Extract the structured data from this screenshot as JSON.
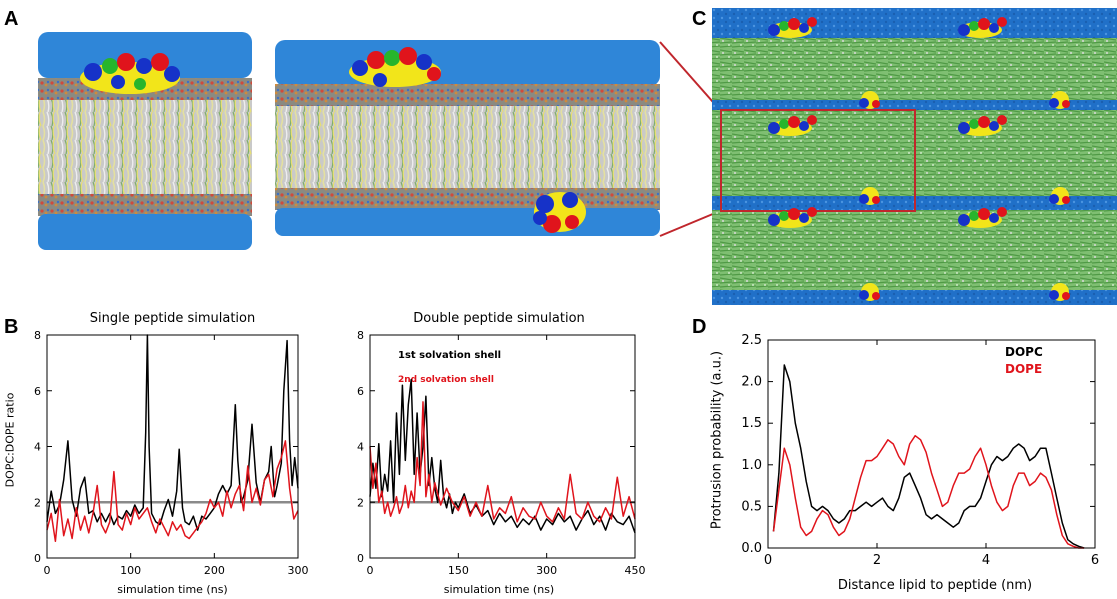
{
  "panel_letters": {
    "a": "A",
    "b": "B",
    "c": "C",
    "d": "D"
  },
  "colors": {
    "water": "#2a7fd4",
    "lipid_green": "#3f9a3c",
    "lipid_white": "#d8d8d8",
    "lipid_yellow": "#e2d84a",
    "peptide_red": "#e0141c",
    "peptide_blue": "#1632c8",
    "peptide_yellow": "#f2e51a",
    "peptide_green": "#27b52c",
    "box_outline": "#c0262c"
  },
  "panel_b_left": {
    "title": "Single peptide simulation",
    "ylabel": "DOPC:DOPE ratio",
    "xlabel": "simulation time (ns)"
  },
  "panel_b_right": {
    "title": "Double peptide simulation",
    "xlabel": "simulation time (ns)",
    "legend_1": "1st solvation shell",
    "legend_2": "2nd solvation shell"
  },
  "panel_d": {
    "ylabel": "Protrusion probability (a.u.)",
    "xlabel": "Distance lipid to peptide (nm)",
    "legend_1": "DOPC",
    "legend_2": "DOPE"
  },
  "chart_data": [
    {
      "type": "line",
      "title": "Single peptide simulation",
      "xlabel": "simulation time (ns)",
      "ylabel": "DOPC:DOPE ratio",
      "xlim": [
        0,
        300
      ],
      "ylim": [
        0,
        8
      ],
      "xticks": [
        0,
        100,
        200,
        300
      ],
      "yticks": [
        0,
        2,
        4,
        6,
        8
      ],
      "reference_line": 2,
      "series": [
        {
          "color": "#000000",
          "x": [
            0,
            5,
            10,
            15,
            20,
            25,
            30,
            35,
            40,
            45,
            50,
            55,
            60,
            65,
            70,
            75,
            80,
            85,
            90,
            95,
            100,
            105,
            110,
            115,
            118,
            120,
            122,
            125,
            130,
            135,
            140,
            145,
            150,
            155,
            158,
            162,
            165,
            170,
            175,
            180,
            185,
            190,
            195,
            200,
            205,
            210,
            215,
            220,
            225,
            228,
            232,
            235,
            240,
            245,
            250,
            255,
            260,
            265,
            268,
            272,
            275,
            280,
            283,
            287,
            290,
            293,
            296,
            300
          ],
          "y": [
            1.3,
            2.4,
            1.6,
            1.9,
            2.8,
            4.2,
            2.1,
            1.5,
            2.5,
            2.9,
            1.6,
            1.7,
            1.3,
            1.6,
            1.3,
            1.6,
            1.2,
            1.5,
            1.4,
            1.7,
            1.5,
            1.9,
            1.6,
            1.8,
            4.5,
            8.0,
            4.0,
            1.6,
            1.3,
            1.2,
            1.7,
            2.1,
            1.5,
            2.4,
            3.9,
            1.8,
            1.3,
            1.2,
            1.5,
            1.0,
            1.5,
            1.4,
            1.6,
            1.8,
            2.3,
            2.6,
            2.3,
            2.6,
            5.5,
            3.5,
            2.0,
            2.2,
            2.8,
            4.8,
            2.7,
            2.0,
            2.8,
            3.1,
            4.0,
            2.2,
            2.6,
            3.4,
            6.0,
            7.8,
            4.2,
            2.6,
            3.6,
            2.5
          ]
        },
        {
          "color": "#e0141c",
          "x": [
            0,
            5,
            10,
            15,
            20,
            25,
            30,
            35,
            40,
            45,
            50,
            55,
            60,
            65,
            70,
            75,
            80,
            85,
            90,
            95,
            100,
            105,
            110,
            115,
            120,
            125,
            130,
            135,
            140,
            145,
            150,
            155,
            160,
            165,
            170,
            175,
            180,
            185,
            190,
            195,
            200,
            205,
            210,
            215,
            220,
            225,
            230,
            235,
            240,
            245,
            250,
            255,
            260,
            265,
            270,
            275,
            280,
            285,
            290,
            295,
            300
          ],
          "y": [
            1.0,
            1.6,
            0.6,
            2.1,
            0.8,
            1.4,
            0.7,
            1.8,
            1.0,
            1.5,
            0.9,
            1.6,
            2.6,
            1.2,
            0.9,
            1.3,
            3.1,
            1.2,
            1.0,
            1.6,
            1.2,
            1.8,
            1.4,
            1.6,
            1.8,
            1.3,
            0.9,
            1.4,
            1.1,
            0.8,
            1.3,
            1.0,
            1.2,
            0.8,
            0.7,
            0.9,
            1.1,
            1.3,
            1.6,
            2.1,
            1.8,
            2.0,
            1.5,
            2.4,
            1.8,
            2.3,
            2.6,
            1.7,
            3.3,
            2.0,
            2.5,
            1.9,
            2.8,
            3.0,
            2.2,
            3.2,
            3.6,
            4.2,
            2.5,
            1.4,
            1.7
          ]
        }
      ]
    },
    {
      "type": "line",
      "title": "Double peptide simulation",
      "xlabel": "simulation time (ns)",
      "xlim": [
        0,
        450
      ],
      "ylim": [
        0,
        8
      ],
      "xticks": [
        0,
        150,
        300,
        450
      ],
      "yticks": [
        0,
        2,
        4,
        6,
        8
      ],
      "reference_line": 2,
      "series": [
        {
          "name": "1st solvation shell",
          "color": "#000000",
          "x": [
            0,
            5,
            10,
            15,
            20,
            25,
            30,
            35,
            40,
            45,
            50,
            55,
            60,
            65,
            70,
            75,
            80,
            85,
            90,
            95,
            100,
            105,
            110,
            115,
            120,
            125,
            130,
            135,
            140,
            145,
            150,
            160,
            170,
            180,
            190,
            200,
            210,
            220,
            230,
            240,
            250,
            260,
            270,
            280,
            290,
            300,
            310,
            320,
            330,
            340,
            350,
            360,
            370,
            380,
            390,
            400,
            410,
            420,
            430,
            440,
            450
          ],
          "y": [
            2.2,
            3.4,
            2.5,
            4.1,
            2.2,
            3.0,
            2.4,
            4.2,
            2.0,
            5.2,
            3.0,
            6.2,
            3.5,
            5.5,
            6.4,
            3.0,
            5.2,
            3.0,
            4.0,
            5.8,
            2.6,
            3.6,
            2.5,
            2.0,
            3.5,
            2.2,
            1.8,
            2.3,
            1.6,
            2.0,
            1.8,
            2.3,
            1.6,
            1.9,
            1.5,
            1.7,
            1.2,
            1.6,
            1.3,
            1.5,
            1.1,
            1.4,
            1.2,
            1.5,
            1.0,
            1.4,
            1.2,
            1.6,
            1.3,
            1.5,
            1.0,
            1.4,
            1.7,
            1.2,
            1.5,
            1.0,
            1.6,
            1.3,
            1.2,
            1.5,
            0.9
          ]
        },
        {
          "name": "2nd solvation shell",
          "color": "#e0141c",
          "x": [
            0,
            5,
            10,
            15,
            20,
            25,
            30,
            35,
            40,
            45,
            50,
            55,
            60,
            65,
            70,
            75,
            80,
            85,
            90,
            95,
            100,
            105,
            110,
            115,
            120,
            130,
            140,
            150,
            160,
            170,
            180,
            190,
            200,
            210,
            220,
            230,
            240,
            250,
            260,
            270,
            280,
            290,
            300,
            310,
            320,
            330,
            340,
            350,
            360,
            370,
            380,
            390,
            400,
            410,
            420,
            430,
            440,
            450
          ],
          "y": [
            4.0,
            2.5,
            3.4,
            2.0,
            2.4,
            1.6,
            2.0,
            1.5,
            1.8,
            2.2,
            1.6,
            1.9,
            2.6,
            1.8,
            2.4,
            2.0,
            3.6,
            2.6,
            5.6,
            2.2,
            3.0,
            2.0,
            2.7,
            2.3,
            1.9,
            2.5,
            2.0,
            1.7,
            2.2,
            1.5,
            2.0,
            1.5,
            2.6,
            1.4,
            1.8,
            1.6,
            2.2,
            1.3,
            1.8,
            1.5,
            1.4,
            2.0,
            1.5,
            1.3,
            1.8,
            1.4,
            3.0,
            1.6,
            1.4,
            2.0,
            1.5,
            1.3,
            1.8,
            1.4,
            2.9,
            1.5,
            2.2,
            1.4
          ]
        }
      ]
    },
    {
      "type": "line",
      "xlabel": "Distance lipid to peptide (nm)",
      "ylabel": "Protrusion probability (a.u.)",
      "xlim": [
        0,
        6
      ],
      "ylim": [
        0,
        2.5
      ],
      "xticks": [
        0,
        2,
        4,
        6
      ],
      "yticks": [
        0.0,
        0.5,
        1.0,
        1.5,
        2.0,
        2.5
      ],
      "series": [
        {
          "name": "DOPC",
          "color": "#000000",
          "x": [
            0.1,
            0.2,
            0.3,
            0.4,
            0.5,
            0.6,
            0.7,
            0.8,
            0.9,
            1.0,
            1.1,
            1.2,
            1.3,
            1.4,
            1.5,
            1.6,
            1.7,
            1.8,
            1.9,
            2.0,
            2.1,
            2.2,
            2.3,
            2.4,
            2.5,
            2.6,
            2.7,
            2.8,
            2.9,
            3.0,
            3.1,
            3.2,
            3.3,
            3.4,
            3.5,
            3.6,
            3.7,
            3.8,
            3.9,
            4.0,
            4.1,
            4.2,
            4.3,
            4.4,
            4.5,
            4.6,
            4.7,
            4.8,
            4.9,
            5.0,
            5.1,
            5.2,
            5.3,
            5.4,
            5.5,
            5.6,
            5.7,
            5.8
          ],
          "y": [
            0.2,
            0.9,
            2.2,
            2.0,
            1.5,
            1.2,
            0.8,
            0.5,
            0.45,
            0.5,
            0.45,
            0.35,
            0.3,
            0.35,
            0.45,
            0.45,
            0.5,
            0.55,
            0.5,
            0.55,
            0.6,
            0.5,
            0.45,
            0.6,
            0.85,
            0.9,
            0.75,
            0.6,
            0.4,
            0.35,
            0.4,
            0.35,
            0.3,
            0.25,
            0.3,
            0.45,
            0.5,
            0.5,
            0.6,
            0.8,
            1.0,
            1.1,
            1.05,
            1.1,
            1.2,
            1.25,
            1.2,
            1.05,
            1.1,
            1.2,
            1.2,
            0.9,
            0.6,
            0.3,
            0.1,
            0.05,
            0.02,
            0.0
          ]
        },
        {
          "name": "DOPE",
          "color": "#e0141c",
          "x": [
            0.1,
            0.2,
            0.3,
            0.4,
            0.5,
            0.6,
            0.7,
            0.8,
            0.9,
            1.0,
            1.1,
            1.2,
            1.3,
            1.4,
            1.5,
            1.6,
            1.7,
            1.8,
            1.9,
            2.0,
            2.1,
            2.2,
            2.3,
            2.4,
            2.5,
            2.6,
            2.7,
            2.8,
            2.9,
            3.0,
            3.1,
            3.2,
            3.3,
            3.4,
            3.5,
            3.6,
            3.7,
            3.8,
            3.9,
            4.0,
            4.1,
            4.2,
            4.3,
            4.4,
            4.5,
            4.6,
            4.7,
            4.8,
            4.9,
            5.0,
            5.1,
            5.2,
            5.3,
            5.4,
            5.5,
            5.6,
            5.7,
            5.8
          ],
          "y": [
            0.2,
            0.7,
            1.2,
            1.0,
            0.6,
            0.25,
            0.15,
            0.2,
            0.35,
            0.45,
            0.4,
            0.25,
            0.15,
            0.2,
            0.35,
            0.6,
            0.85,
            1.05,
            1.05,
            1.1,
            1.2,
            1.3,
            1.25,
            1.1,
            1.0,
            1.25,
            1.35,
            1.3,
            1.15,
            0.9,
            0.7,
            0.5,
            0.55,
            0.75,
            0.9,
            0.9,
            0.95,
            1.1,
            1.2,
            1.0,
            0.75,
            0.55,
            0.45,
            0.5,
            0.75,
            0.9,
            0.9,
            0.75,
            0.8,
            0.9,
            0.85,
            0.7,
            0.4,
            0.15,
            0.05,
            0.02,
            0.0,
            0.0
          ]
        }
      ]
    }
  ]
}
